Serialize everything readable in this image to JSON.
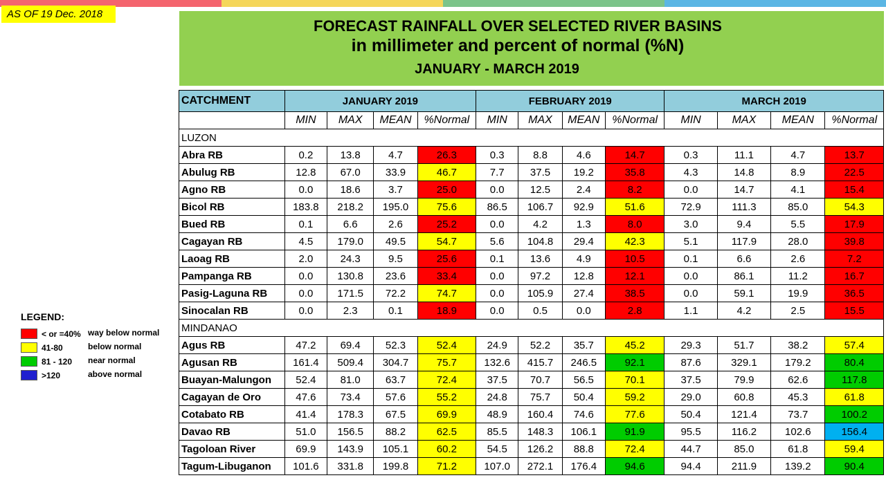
{
  "colors": {
    "topbar": [
      "#f4646e",
      "#f5d65a",
      "#7cc48a",
      "#5bb6e4"
    ],
    "red": "#ff0000",
    "yellow": "#ffff00",
    "green": "#00cc00",
    "blue": "#00b0f0",
    "title_bg": "#92d050",
    "header_bg": "#92cddc"
  },
  "as_of": "AS OF 19 Dec. 2018",
  "title": {
    "line1": "FORECAST RAINFALL OVER SELECTED RIVER BASINS",
    "line2": "in millimeter  and percent of normal (%N)",
    "line3": "JANUARY  - MARCH 2019"
  },
  "table": {
    "catchment_label": "CATCHMENT",
    "months": [
      "JANUARY 2019",
      "FEBRUARY 2019",
      "MARCH 2019"
    ],
    "subheaders": [
      "MIN",
      "MAX",
      "MEAN",
      "%Normal"
    ],
    "sections": [
      {
        "name": "LUZON",
        "rows": [
          {
            "name": "Abra RB",
            "jan": [
              "0.2",
              "13.8",
              "4.7",
              "26.3"
            ],
            "jan_c": "red",
            "feb": [
              "0.3",
              "8.8",
              "4.6",
              "14.7"
            ],
            "feb_c": "red",
            "mar": [
              "0.3",
              "11.1",
              "4.7",
              "13.7"
            ],
            "mar_c": "red"
          },
          {
            "name": "Abulug RB",
            "jan": [
              "12.8",
              "67.0",
              "33.9",
              "46.7"
            ],
            "jan_c": "yellow",
            "feb": [
              "7.7",
              "37.5",
              "19.2",
              "35.8"
            ],
            "feb_c": "red",
            "mar": [
              "4.3",
              "14.8",
              "8.9",
              "22.5"
            ],
            "mar_c": "red"
          },
          {
            "name": "Agno RB",
            "jan": [
              "0.0",
              "18.6",
              "3.7",
              "25.0"
            ],
            "jan_c": "red",
            "feb": [
              "0.0",
              "12.5",
              "2.4",
              "8.2"
            ],
            "feb_c": "red",
            "mar": [
              "0.0",
              "14.7",
              "4.1",
              "15.4"
            ],
            "mar_c": "red"
          },
          {
            "name": "Bicol RB",
            "jan": [
              "183.8",
              "218.2",
              "195.0",
              "75.6"
            ],
            "jan_c": "yellow",
            "feb": [
              "86.5",
              "106.7",
              "92.9",
              "51.6"
            ],
            "feb_c": "yellow",
            "mar": [
              "72.9",
              "111.3",
              "85.0",
              "54.3"
            ],
            "mar_c": "yellow"
          },
          {
            "name": "Bued RB",
            "jan": [
              "0.1",
              "6.6",
              "2.6",
              "25.2"
            ],
            "jan_c": "red",
            "feb": [
              "0.0",
              "4.2",
              "1.3",
              "8.0"
            ],
            "feb_c": "red",
            "mar": [
              "3.0",
              "9.4",
              "5.5",
              "17.9"
            ],
            "mar_c": "red"
          },
          {
            "name": "Cagayan RB",
            "jan": [
              "4.5",
              "179.0",
              "49.5",
              "54.7"
            ],
            "jan_c": "yellow",
            "feb": [
              "5.6",
              "104.8",
              "29.4",
              "42.3"
            ],
            "feb_c": "yellow",
            "mar": [
              "5.1",
              "117.9",
              "28.0",
              "39.8"
            ],
            "mar_c": "red"
          },
          {
            "name": "Laoag RB",
            "jan": [
              "2.0",
              "24.3",
              "9.5",
              "25.6"
            ],
            "jan_c": "red",
            "feb": [
              "0.1",
              "13.6",
              "4.9",
              "10.5"
            ],
            "feb_c": "red",
            "mar": [
              "0.1",
              "6.6",
              "2.6",
              "7.2"
            ],
            "mar_c": "red"
          },
          {
            "name": "Pampanga RB",
            "jan": [
              "0.0",
              "130.8",
              "23.6",
              "33.4"
            ],
            "jan_c": "red",
            "feb": [
              "0.0",
              "97.2",
              "12.8",
              "12.1"
            ],
            "feb_c": "red",
            "mar": [
              "0.0",
              "86.1",
              "11.2",
              "16.7"
            ],
            "mar_c": "red"
          },
          {
            "name": "Pasig-Laguna RB",
            "jan": [
              "0.0",
              "171.5",
              "72.2",
              "74.7"
            ],
            "jan_c": "yellow",
            "feb": [
              "0.0",
              "105.9",
              "27.4",
              "38.5"
            ],
            "feb_c": "red",
            "mar": [
              "0.0",
              "59.1",
              "19.9",
              "36.5"
            ],
            "mar_c": "red"
          },
          {
            "name": "Sinocalan RB",
            "jan": [
              "0.0",
              "2.3",
              "0.1",
              "18.9"
            ],
            "jan_c": "red",
            "feb": [
              "0.0",
              "0.5",
              "0.0",
              "2.8"
            ],
            "feb_c": "red",
            "mar": [
              "1.1",
              "4.2",
              "2.5",
              "15.5"
            ],
            "mar_c": "red"
          }
        ]
      },
      {
        "name": "MINDANAO",
        "rows": [
          {
            "name": "Agus RB",
            "jan": [
              "47.2",
              "69.4",
              "52.3",
              "52.4"
            ],
            "jan_c": "yellow",
            "feb": [
              "24.9",
              "52.2",
              "35.7",
              "45.2"
            ],
            "feb_c": "yellow",
            "mar": [
              "29.3",
              "51.7",
              "38.2",
              "57.4"
            ],
            "mar_c": "yellow"
          },
          {
            "name": "Agusan RB",
            "jan": [
              "161.4",
              "509.4",
              "304.7",
              "75.7"
            ],
            "jan_c": "yellow",
            "feb": [
              "132.6",
              "415.7",
              "246.5",
              "92.1"
            ],
            "feb_c": "green",
            "mar": [
              "87.6",
              "329.1",
              "179.2",
              "80.4"
            ],
            "mar_c": "green"
          },
          {
            "name": "Buayan-Malungon",
            "jan": [
              "52.4",
              "81.0",
              "63.7",
              "72.4"
            ],
            "jan_c": "yellow",
            "feb": [
              "37.5",
              "70.7",
              "56.5",
              "70.1"
            ],
            "feb_c": "yellow",
            "mar": [
              "37.5",
              "79.9",
              "62.6",
              "117.8"
            ],
            "mar_c": "green"
          },
          {
            "name": "Cagayan de Oro",
            "jan": [
              "47.6",
              "73.4",
              "57.6",
              "55.2"
            ],
            "jan_c": "yellow",
            "feb": [
              "24.8",
              "75.7",
              "50.4",
              "59.2"
            ],
            "feb_c": "yellow",
            "mar": [
              "29.0",
              "60.8",
              "45.3",
              "61.8"
            ],
            "mar_c": "yellow"
          },
          {
            "name": "Cotabato RB",
            "jan": [
              "41.4",
              "178.3",
              "67.5",
              "69.9"
            ],
            "jan_c": "yellow",
            "feb": [
              "48.9",
              "160.4",
              "74.6",
              "77.6"
            ],
            "feb_c": "yellow",
            "mar": [
              "50.4",
              "121.4",
              "73.7",
              "100.2"
            ],
            "mar_c": "green"
          },
          {
            "name": "Davao RB",
            "jan": [
              "51.0",
              "156.5",
              "88.2",
              "62.5"
            ],
            "jan_c": "yellow",
            "feb": [
              "85.5",
              "148.3",
              "106.1",
              "91.9"
            ],
            "feb_c": "green",
            "mar": [
              "95.5",
              "116.2",
              "102.6",
              "156.4"
            ],
            "mar_c": "blue"
          },
          {
            "name": "Tagoloan River",
            "jan": [
              "69.9",
              "143.9",
              "105.1",
              "60.2"
            ],
            "jan_c": "yellow",
            "feb": [
              "54.5",
              "126.2",
              "88.8",
              "72.4"
            ],
            "feb_c": "yellow",
            "mar": [
              "44.7",
              "85.0",
              "61.8",
              "59.4"
            ],
            "mar_c": "yellow"
          },
          {
            "name": "Tagum-Libuganon",
            "jan": [
              "101.6",
              "331.8",
              "199.8",
              "71.2"
            ],
            "jan_c": "yellow",
            "feb": [
              "107.0",
              "272.1",
              "176.4",
              "94.6"
            ],
            "feb_c": "green",
            "mar": [
              "94.4",
              "211.9",
              "139.2",
              "90.4"
            ],
            "mar_c": "green"
          }
        ]
      }
    ]
  },
  "legend": {
    "title": "LEGEND:",
    "items": [
      {
        "range": "< or =40%",
        "desc": "way below normal",
        "color": "red"
      },
      {
        "range": "41-80",
        "desc": "below normal",
        "color": "yellow"
      },
      {
        "range": "81 - 120",
        "desc": "near normal",
        "color": "green"
      },
      {
        "range": ">120",
        "desc": "above normal",
        "color": "blue_legend"
      }
    ]
  }
}
